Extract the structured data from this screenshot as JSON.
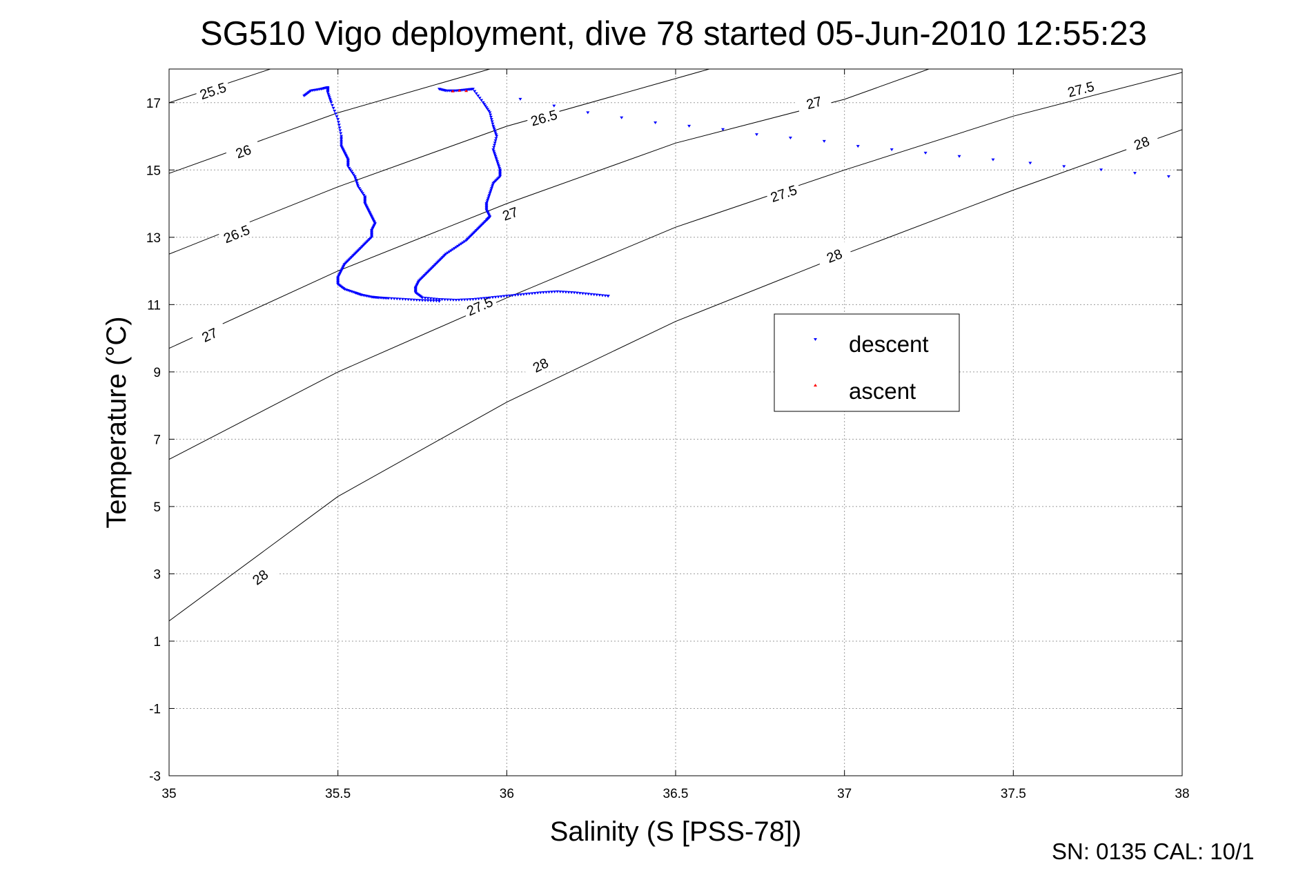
{
  "chart_data": {
    "type": "scatter",
    "title": "SG510 Vigo deployment, dive 78 started 05-Jun-2010 12:55:23",
    "xlabel": "Salinity (S [PSS-78])",
    "ylabel": "Temperature (°C)",
    "footer": "SN: 0135  CAL: 10/1",
    "xlim": [
      35,
      38
    ],
    "ylim": [
      -3,
      18
    ],
    "xticks": [
      35,
      35.5,
      36,
      36.5,
      37,
      37.5,
      38
    ],
    "xtick_labels": [
      "35",
      "35.5",
      "36",
      "36.5",
      "37",
      "37.5",
      "38"
    ],
    "yticks": [
      -3,
      -1,
      1,
      3,
      5,
      7,
      9,
      11,
      13,
      15,
      17
    ],
    "ytick_labels": [
      "-3",
      "-1",
      "1",
      "3",
      "5",
      "7",
      "9",
      "11",
      "13",
      "15",
      "17"
    ],
    "grid": true,
    "legend": {
      "placement": "center-right",
      "entries": [
        {
          "label": "descent",
          "color": "#0000ff",
          "marker": "triangle-down"
        },
        {
          "label": "ascent",
          "color": "#ff0000",
          "marker": "triangle-up"
        }
      ]
    },
    "contours": [
      {
        "label": "25.5",
        "points": [
          [
            35.0,
            17.0
          ],
          [
            35.3,
            18.0
          ]
        ],
        "label_at": [
          35.13,
          17.35
        ]
      },
      {
        "label": "26",
        "points": [
          [
            35.0,
            14.9
          ],
          [
            35.5,
            16.7
          ],
          [
            35.95,
            18.0
          ]
        ],
        "label_at": [
          35.22,
          15.55
        ]
      },
      {
        "label": "26.5",
        "points": [
          [
            35.0,
            12.5
          ],
          [
            35.5,
            14.5
          ],
          [
            36.0,
            16.3
          ],
          [
            36.6,
            18.0
          ]
        ],
        "label_at": [
          35.2,
          13.1
        ],
        "label2": "26.5",
        "label2_at": [
          36.11,
          16.55
        ]
      },
      {
        "label": "27",
        "points": [
          [
            35.0,
            9.7
          ],
          [
            35.5,
            12.0
          ],
          [
            36.0,
            14.0
          ],
          [
            36.5,
            15.8
          ],
          [
            37.0,
            17.1
          ],
          [
            37.25,
            18.0
          ]
        ],
        "label_at": [
          35.12,
          10.1
        ],
        "label2": "27",
        "label2_at": [
          36.01,
          13.7
        ],
        "label3": "27",
        "label3_at": [
          36.91,
          17.0
        ]
      },
      {
        "label": "27.5",
        "points": [
          [
            35.0,
            6.4
          ],
          [
            35.5,
            9.0
          ],
          [
            36.0,
            11.2
          ],
          [
            36.5,
            13.3
          ],
          [
            37.0,
            15.0
          ],
          [
            37.5,
            16.6
          ],
          [
            38.0,
            17.9
          ]
        ],
        "label_at": [
          35.92,
          10.95
        ],
        "label2": "27.5",
        "label2_at": [
          36.82,
          14.3
        ],
        "label3": "27.5",
        "label3_at": [
          37.7,
          17.4
        ]
      },
      {
        "label": "28",
        "points": [
          [
            35.0,
            1.6
          ],
          [
            35.5,
            5.3
          ],
          [
            36.0,
            8.1
          ],
          [
            36.5,
            10.5
          ],
          [
            37.0,
            12.5
          ],
          [
            37.5,
            14.4
          ],
          [
            38.0,
            16.2
          ]
        ],
        "label_at": [
          35.27,
          2.9
        ],
        "label2": "28",
        "label2_at": [
          36.1,
          9.2
        ],
        "label3": "28",
        "label3_at": [
          36.97,
          12.45
        ],
        "label4": "28",
        "label4_at": [
          37.88,
          15.8
        ]
      }
    ],
    "series": [
      {
        "name": "descent",
        "color": "#0000ff",
        "segments": [
          {
            "x": [
              35.4,
              35.42,
              35.45,
              35.47,
              35.47,
              35.48,
              35.5,
              35.51,
              35.51,
              35.52,
              35.53,
              35.53,
              35.55,
              35.56,
              35.58,
              35.58,
              35.59,
              35.6,
              35.61,
              35.6,
              35.6,
              35.58,
              35.56,
              35.54,
              35.52,
              35.51,
              35.5,
              35.5,
              35.52,
              35.55,
              35.57,
              35.6,
              35.62,
              35.65,
              35.7,
              35.75,
              35.8
            ],
            "y": [
              17.2,
              17.35,
              17.4,
              17.45,
              17.3,
              17.0,
              16.5,
              16.0,
              15.7,
              15.5,
              15.3,
              15.1,
              14.8,
              14.5,
              14.2,
              14.0,
              13.8,
              13.6,
              13.4,
              13.2,
              13.0,
              12.8,
              12.6,
              12.4,
              12.2,
              12.0,
              11.8,
              11.6,
              11.45,
              11.35,
              11.28,
              11.22,
              11.2,
              11.18,
              11.15,
              11.12,
              11.1
            ]
          },
          {
            "x": [
              35.8,
              35.82,
              35.85,
              35.88,
              35.9,
              35.93,
              35.95,
              35.96,
              35.97,
              35.96,
              35.97,
              35.98,
              35.98,
              35.96,
              35.95,
              35.94,
              35.94,
              35.95,
              35.94,
              35.92,
              35.9,
              35.88,
              35.85,
              35.82,
              35.8,
              35.78,
              35.76,
              35.74,
              35.73,
              35.73,
              35.75,
              35.8,
              35.85,
              35.9,
              35.95,
              36.0,
              36.05,
              36.1,
              36.15,
              36.2,
              36.25,
              36.3
            ],
            "y": [
              17.4,
              17.35,
              17.35,
              17.38,
              17.4,
              17.0,
              16.7,
              16.3,
              16.0,
              15.6,
              15.3,
              15.0,
              14.8,
              14.6,
              14.3,
              14.0,
              13.8,
              13.6,
              13.5,
              13.3,
              13.1,
              12.9,
              12.7,
              12.5,
              12.3,
              12.1,
              11.9,
              11.7,
              11.5,
              11.35,
              11.2,
              11.15,
              11.13,
              11.15,
              11.2,
              11.25,
              11.3,
              11.35,
              11.38,
              11.35,
              11.3,
              11.25
            ]
          },
          {
            "x": [
              36.04,
              36.14,
              36.24,
              36.34,
              36.44,
              36.54,
              36.64,
              36.74,
              36.84,
              36.94,
              37.04,
              37.14,
              37.24,
              37.34,
              37.44,
              37.55,
              37.65,
              37.76,
              37.86,
              37.96
            ],
            "y": [
              17.1,
              16.9,
              16.7,
              16.55,
              16.4,
              16.3,
              16.2,
              16.05,
              15.95,
              15.85,
              15.7,
              15.6,
              15.5,
              15.4,
              15.3,
              15.2,
              15.1,
              15.0,
              14.9,
              14.8
            ]
          }
        ]
      },
      {
        "name": "ascent",
        "color": "#ff0000",
        "segments": [
          {
            "x": [
              35.84,
              35.86,
              35.88
            ],
            "y": [
              17.35,
              17.37,
              17.36
            ]
          }
        ]
      }
    ]
  }
}
